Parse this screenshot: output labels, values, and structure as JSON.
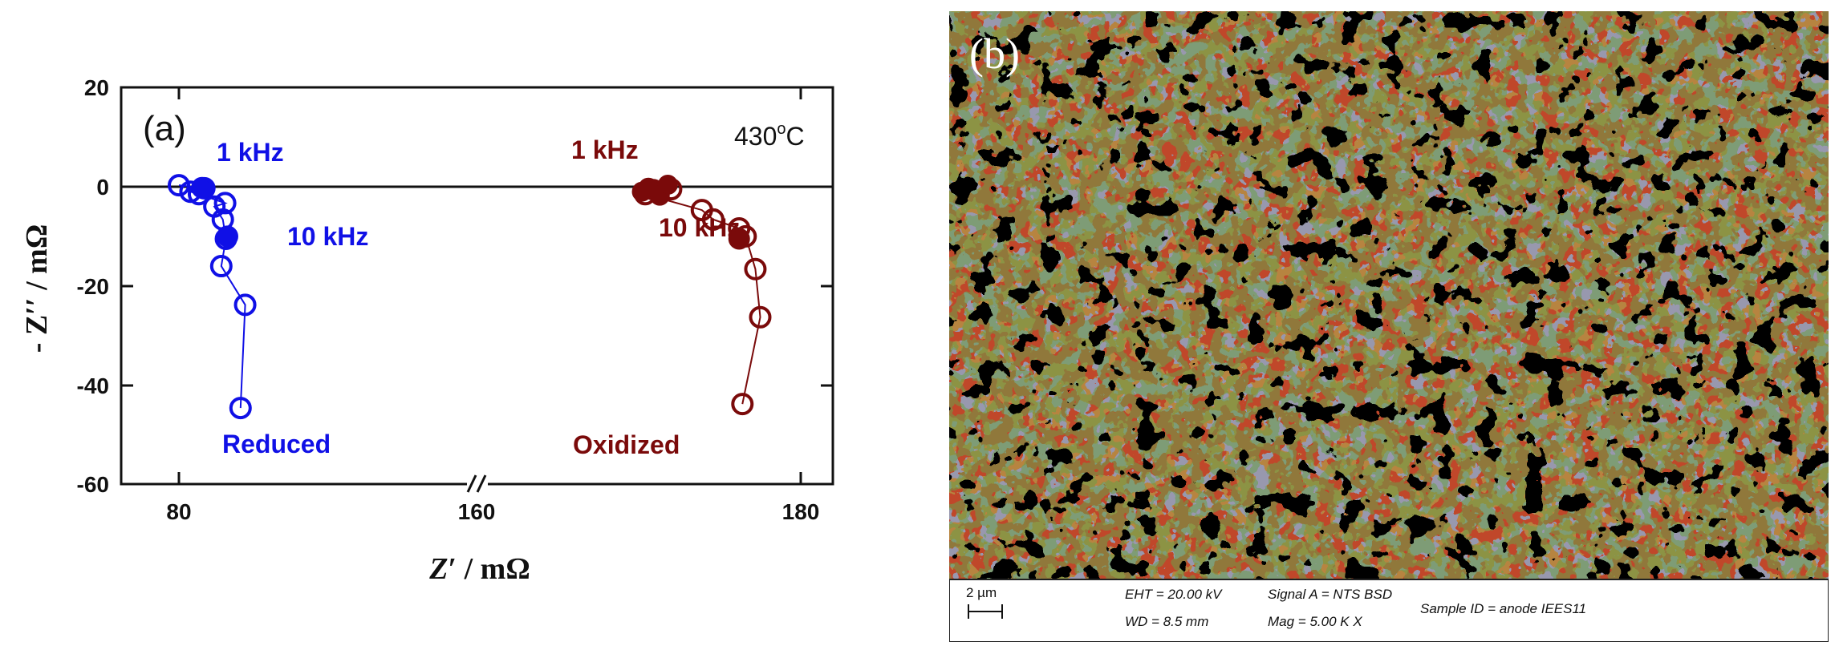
{
  "panel_a": {
    "label": "(a)",
    "temperature": "430",
    "temperature_sup": "o",
    "temperature_unit": "C",
    "ylabel_prefix": "- Z",
    "ylabel_prime": "′′",
    "ylabel_unit": " / mΩ",
    "xlabel_prefix": "Z",
    "xlabel_prime": "′",
    "xlabel_unit": " / mΩ",
    "annotations": {
      "reduced_1khz": "1 kHz",
      "reduced_10khz": "10 kHz",
      "reduced_name": "Reduced",
      "oxidized_1khz": "1 kHz",
      "oxidized_10khz": "10 kHz",
      "oxidized_name": "Oxidized"
    }
  },
  "chart_data": {
    "type": "scatter",
    "title": "",
    "xlabel": "Z′ / mΩ",
    "ylabel": "- Z′′ / mΩ",
    "x_axis_break": true,
    "xticks": [
      "80",
      "160",
      "180"
    ],
    "yticks": [
      "20",
      "0",
      "-20",
      "-40",
      "-60"
    ],
    "ylim": [
      -60,
      20
    ],
    "grid": false,
    "colors": {
      "reduced": "#1010e6",
      "oxidized": "#7a0a0a"
    },
    "series": [
      {
        "name": "Reduced",
        "x": [
          80.0,
          81.5,
          82.6,
          83.3,
          84.6,
          85.7,
          86.0,
          85.5,
          86.1,
          88.6,
          88.0
        ],
        "y": [
          0.3,
          -1.0,
          -1.5,
          -0.3,
          -4.0,
          -6.6,
          -3.3,
          -16.0,
          -10.5,
          -23.8,
          -44.6
        ],
        "filled_x": [
          83.0,
          86.3
        ],
        "filled_y": [
          -0.2,
          -10.0
        ]
      },
      {
        "name": "Oxidized",
        "x": [
          170.4,
          172.0,
          173.9,
          174.6,
          176.2,
          176.6,
          177.2,
          174.6,
          177.5,
          176.4
        ],
        "y": [
          -1.5,
          -0.5,
          -4.7,
          -6.6,
          -8.4,
          -10.0,
          -16.6,
          -6.6,
          -26.3,
          -43.8
        ],
        "filled_x": [
          170.9,
          176.2
        ],
        "filled_y": [
          -0.6,
          -10.5
        ]
      }
    ]
  },
  "panel_b": {
    "label": "(b)",
    "scalebar": "2 µm",
    "eht": "EHT = 20.00 kV",
    "wd": "WD =  8.5 mm",
    "signal": "Signal A = NTS BSD",
    "mag": "Mag =     5.00 K X",
    "sample": "Sample ID = anode IEES11"
  }
}
